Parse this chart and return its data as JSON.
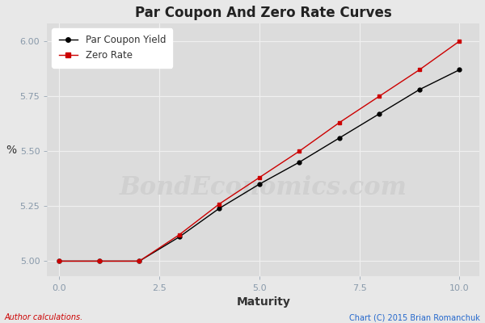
{
  "title": "Par Coupon And Zero Rate Curves",
  "xlabel": "Maturity",
  "ylabel": "%",
  "xlim": [
    -0.3,
    10.5
  ],
  "ylim": [
    4.93,
    6.08
  ],
  "yticks": [
    5.0,
    5.25,
    5.5,
    5.75,
    6.0
  ],
  "xticks": [
    0.0,
    2.5,
    5.0,
    7.5,
    10.0
  ],
  "par_x": [
    0,
    1,
    2,
    3,
    4,
    5,
    6,
    7,
    8,
    9,
    10
  ],
  "par_y": [
    5.0,
    5.0,
    5.0,
    5.11,
    5.24,
    5.35,
    5.45,
    5.56,
    5.67,
    5.78,
    5.87
  ],
  "zero_x": [
    0,
    1,
    2,
    3,
    4,
    5,
    6,
    7,
    8,
    9,
    10
  ],
  "zero_y": [
    5.0,
    5.0,
    5.0,
    5.12,
    5.26,
    5.38,
    5.5,
    5.63,
    5.75,
    5.87,
    6.0
  ],
  "par_color": "#000000",
  "zero_color": "#cc0000",
  "par_label": "Par Coupon Yield",
  "zero_label": "Zero Rate",
  "bg_color": "#e8e8e8",
  "plot_bg_color": "#dcdcdc",
  "grid_color": "#f0f0f0",
  "tick_color": "#8899aa",
  "watermark_text": "BondEconomics.com",
  "watermark_color": "#d0d0d0",
  "footer_left": "Author calculations.",
  "footer_right": "Chart (C) 2015 Brian Romanchuk",
  "footer_left_color": "#cc0000",
  "footer_right_color": "#2266cc",
  "title_fontsize": 12,
  "axis_label_fontsize": 10,
  "tick_fontsize": 8,
  "legend_fontsize": 8.5,
  "footer_fontsize": 7
}
